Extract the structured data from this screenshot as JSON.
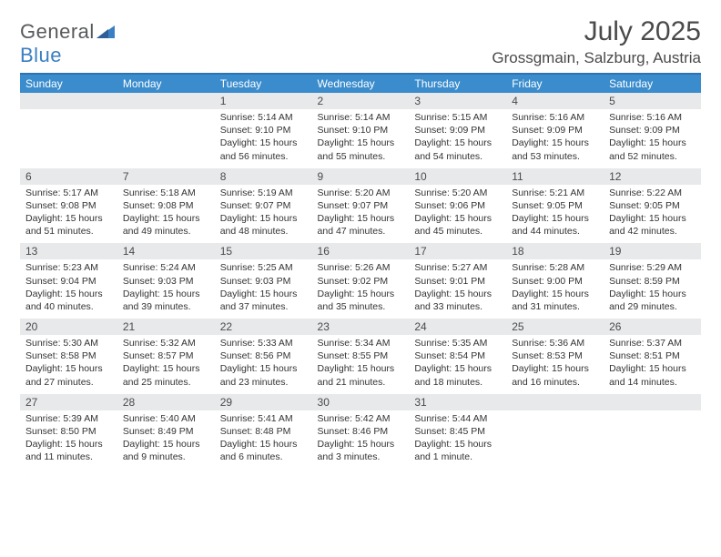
{
  "brand": {
    "word1": "General",
    "word2": "Blue"
  },
  "header": {
    "title": "July 2025",
    "location": "Grossgmain, Salzburg, Austria"
  },
  "colors": {
    "header_bg": "#3a8ccc",
    "rule": "#2d72b4",
    "daynum_bg": "#e8e9ea",
    "text": "#333333",
    "brand_gray": "#58595b",
    "brand_blue": "#3a7fc4"
  },
  "weekdays": [
    "Sunday",
    "Monday",
    "Tuesday",
    "Wednesday",
    "Thursday",
    "Friday",
    "Saturday"
  ],
  "weeks": [
    [
      null,
      null,
      {
        "n": "1",
        "sunrise": "5:14 AM",
        "sunset": "9:10 PM",
        "daylight": "15 hours and 56 minutes."
      },
      {
        "n": "2",
        "sunrise": "5:14 AM",
        "sunset": "9:10 PM",
        "daylight": "15 hours and 55 minutes."
      },
      {
        "n": "3",
        "sunrise": "5:15 AM",
        "sunset": "9:09 PM",
        "daylight": "15 hours and 54 minutes."
      },
      {
        "n": "4",
        "sunrise": "5:16 AM",
        "sunset": "9:09 PM",
        "daylight": "15 hours and 53 minutes."
      },
      {
        "n": "5",
        "sunrise": "5:16 AM",
        "sunset": "9:09 PM",
        "daylight": "15 hours and 52 minutes."
      }
    ],
    [
      {
        "n": "6",
        "sunrise": "5:17 AM",
        "sunset": "9:08 PM",
        "daylight": "15 hours and 51 minutes."
      },
      {
        "n": "7",
        "sunrise": "5:18 AM",
        "sunset": "9:08 PM",
        "daylight": "15 hours and 49 minutes."
      },
      {
        "n": "8",
        "sunrise": "5:19 AM",
        "sunset": "9:07 PM",
        "daylight": "15 hours and 48 minutes."
      },
      {
        "n": "9",
        "sunrise": "5:20 AM",
        "sunset": "9:07 PM",
        "daylight": "15 hours and 47 minutes."
      },
      {
        "n": "10",
        "sunrise": "5:20 AM",
        "sunset": "9:06 PM",
        "daylight": "15 hours and 45 minutes."
      },
      {
        "n": "11",
        "sunrise": "5:21 AM",
        "sunset": "9:05 PM",
        "daylight": "15 hours and 44 minutes."
      },
      {
        "n": "12",
        "sunrise": "5:22 AM",
        "sunset": "9:05 PM",
        "daylight": "15 hours and 42 minutes."
      }
    ],
    [
      {
        "n": "13",
        "sunrise": "5:23 AM",
        "sunset": "9:04 PM",
        "daylight": "15 hours and 40 minutes."
      },
      {
        "n": "14",
        "sunrise": "5:24 AM",
        "sunset": "9:03 PM",
        "daylight": "15 hours and 39 minutes."
      },
      {
        "n": "15",
        "sunrise": "5:25 AM",
        "sunset": "9:03 PM",
        "daylight": "15 hours and 37 minutes."
      },
      {
        "n": "16",
        "sunrise": "5:26 AM",
        "sunset": "9:02 PM",
        "daylight": "15 hours and 35 minutes."
      },
      {
        "n": "17",
        "sunrise": "5:27 AM",
        "sunset": "9:01 PM",
        "daylight": "15 hours and 33 minutes."
      },
      {
        "n": "18",
        "sunrise": "5:28 AM",
        "sunset": "9:00 PM",
        "daylight": "15 hours and 31 minutes."
      },
      {
        "n": "19",
        "sunrise": "5:29 AM",
        "sunset": "8:59 PM",
        "daylight": "15 hours and 29 minutes."
      }
    ],
    [
      {
        "n": "20",
        "sunrise": "5:30 AM",
        "sunset": "8:58 PM",
        "daylight": "15 hours and 27 minutes."
      },
      {
        "n": "21",
        "sunrise": "5:32 AM",
        "sunset": "8:57 PM",
        "daylight": "15 hours and 25 minutes."
      },
      {
        "n": "22",
        "sunrise": "5:33 AM",
        "sunset": "8:56 PM",
        "daylight": "15 hours and 23 minutes."
      },
      {
        "n": "23",
        "sunrise": "5:34 AM",
        "sunset": "8:55 PM",
        "daylight": "15 hours and 21 minutes."
      },
      {
        "n": "24",
        "sunrise": "5:35 AM",
        "sunset": "8:54 PM",
        "daylight": "15 hours and 18 minutes."
      },
      {
        "n": "25",
        "sunrise": "5:36 AM",
        "sunset": "8:53 PM",
        "daylight": "15 hours and 16 minutes."
      },
      {
        "n": "26",
        "sunrise": "5:37 AM",
        "sunset": "8:51 PM",
        "daylight": "15 hours and 14 minutes."
      }
    ],
    [
      {
        "n": "27",
        "sunrise": "5:39 AM",
        "sunset": "8:50 PM",
        "daylight": "15 hours and 11 minutes."
      },
      {
        "n": "28",
        "sunrise": "5:40 AM",
        "sunset": "8:49 PM",
        "daylight": "15 hours and 9 minutes."
      },
      {
        "n": "29",
        "sunrise": "5:41 AM",
        "sunset": "8:48 PM",
        "daylight": "15 hours and 6 minutes."
      },
      {
        "n": "30",
        "sunrise": "5:42 AM",
        "sunset": "8:46 PM",
        "daylight": "15 hours and 3 minutes."
      },
      {
        "n": "31",
        "sunrise": "5:44 AM",
        "sunset": "8:45 PM",
        "daylight": "15 hours and 1 minute."
      },
      null,
      null
    ]
  ],
  "labels": {
    "sunrise": "Sunrise: ",
    "sunset": "Sunset: ",
    "daylight": "Daylight: "
  }
}
